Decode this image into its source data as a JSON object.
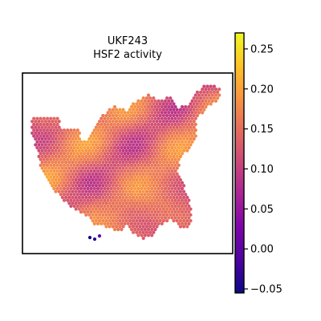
{
  "chart_data": {
    "type": "scatter",
    "subtype": "spatial-spot-map",
    "title": "UKF243",
    "subtitle": "HSF2 activity",
    "xlabel": "",
    "ylabel": "",
    "colorbar": {
      "colormap": "plasma",
      "vmin": -0.055,
      "vmax": 0.27,
      "ticks": [
        -0.05,
        0.0,
        0.05,
        0.1,
        0.15,
        0.2,
        0.25
      ],
      "tick_labels": [
        "−0.05",
        "0.00",
        "0.05",
        "0.10",
        "0.15",
        "0.20",
        "0.25"
      ]
    },
    "spot_value_summary": {
      "typical_range": [
        0.07,
        0.22
      ],
      "low_outlier_spots": [
        -0.05,
        -0.04,
        0.0
      ]
    },
    "grid": false,
    "legend": "colorbar-right"
  }
}
